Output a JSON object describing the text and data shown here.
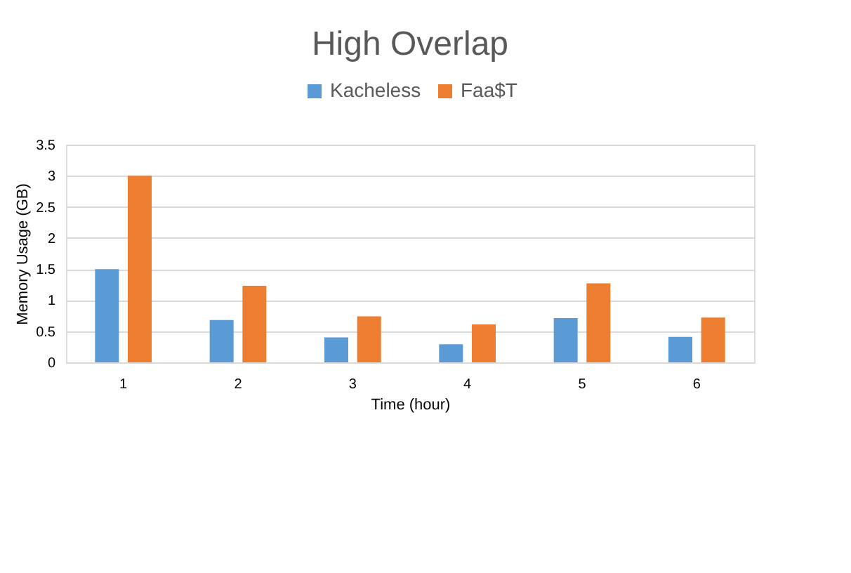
{
  "chart_data": {
    "type": "bar",
    "title": "High Overlap",
    "xlabel": "Time (hour)",
    "ylabel": "Memory Usage (GB)",
    "categories": [
      "1",
      "2",
      "3",
      "4",
      "5",
      "6"
    ],
    "series": [
      {
        "name": "Kacheless",
        "color": "#5b9bd5",
        "values": [
          1.5,
          0.68,
          0.4,
          0.29,
          0.71,
          0.41
        ]
      },
      {
        "name": "Faa$T",
        "color": "#ed7d31",
        "values": [
          3.0,
          1.23,
          0.74,
          0.61,
          1.27,
          0.72
        ]
      }
    ],
    "ylim": [
      0,
      3.5
    ],
    "yticks": [
      0,
      0.5,
      1,
      1.5,
      2,
      2.5,
      3,
      3.5
    ],
    "grid": "y",
    "legend": "top"
  }
}
